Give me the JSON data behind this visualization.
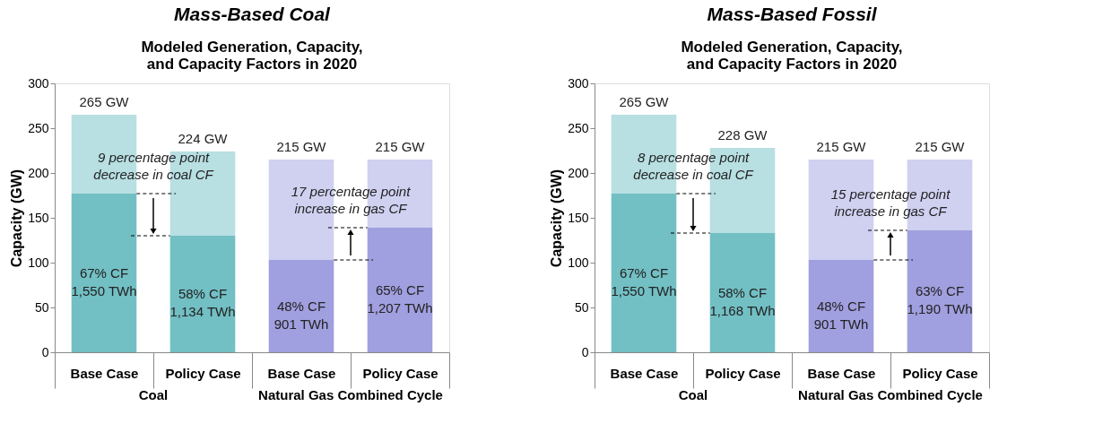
{
  "chart_data": [
    {
      "type": "bar",
      "title": "Mass-Based Coal",
      "subtitle": "Modeled Generation, Capacity,\nand Capacity Factors in 2020",
      "ylabel": "Capacity (GW)",
      "categories": [
        "Base Case",
        "Policy Case",
        "Base Case",
        "Policy Case"
      ],
      "stacked": true,
      "ylim": [
        0,
        300
      ],
      "yticks": [
        0,
        50,
        100,
        150,
        200,
        250,
        300
      ],
      "grid": false,
      "series": [
        {
          "colors": [
            "#72bfc4",
            "#72bfc4",
            "#a09fdf",
            "#a09fdf"
          ],
          "values": [
            177,
            130,
            103,
            139
          ]
        },
        {
          "colors": [
            "#b8dfe2",
            "#b8dfe2",
            "#d0d0f1",
            "#d0d0f1"
          ],
          "values": [
            88,
            94,
            112,
            76
          ]
        }
      ],
      "totals": [
        "265 GW",
        "224 GW",
        "215 GW",
        "215 GW"
      ],
      "annotations": [
        "67% CF\n1,550 TWh",
        "58% CF\n1,134 TWh",
        "48% CF\n901 TWh",
        "65% CF\n1,207 TWh",
        "9 percentage point\ndecrease in coal CF",
        "17 percentage point\nincrease in gas CF",
        "Coal",
        "Natural Gas Combined Cycle"
      ]
    },
    {
      "type": "bar",
      "title": "Mass-Based Fossil",
      "subtitle": "Modeled Generation, Capacity,\nand Capacity Factors in 2020",
      "ylabel": "Capacity (GW)",
      "categories": [
        "Base Case",
        "Policy Case",
        "Base Case",
        "Policy Case"
      ],
      "stacked": true,
      "ylim": [
        0,
        300
      ],
      "yticks": [
        0,
        50,
        100,
        150,
        200,
        250,
        300
      ],
      "grid": false,
      "series": [
        {
          "colors": [
            "#72bfc4",
            "#72bfc4",
            "#a09fdf",
            "#a09fdf"
          ],
          "values": [
            177,
            133,
            103,
            136
          ]
        },
        {
          "colors": [
            "#b8dfe2",
            "#b8dfe2",
            "#d0d0f1",
            "#d0d0f1"
          ],
          "values": [
            88,
            95,
            112,
            79
          ]
        }
      ],
      "totals": [
        "265 GW",
        "228 GW",
        "215 GW",
        "215 GW"
      ],
      "annotations": [
        "67% CF\n1,550 TWh",
        "58% CF\n1,168 TWh",
        "48% CF\n901 TWh",
        "63% CF\n1,190 TWh",
        "8 percentage point\ndecrease in coal CF",
        "15 percentage point\nincrease in gas CF",
        "Coal",
        "Natural Gas Combined Cycle"
      ]
    }
  ]
}
